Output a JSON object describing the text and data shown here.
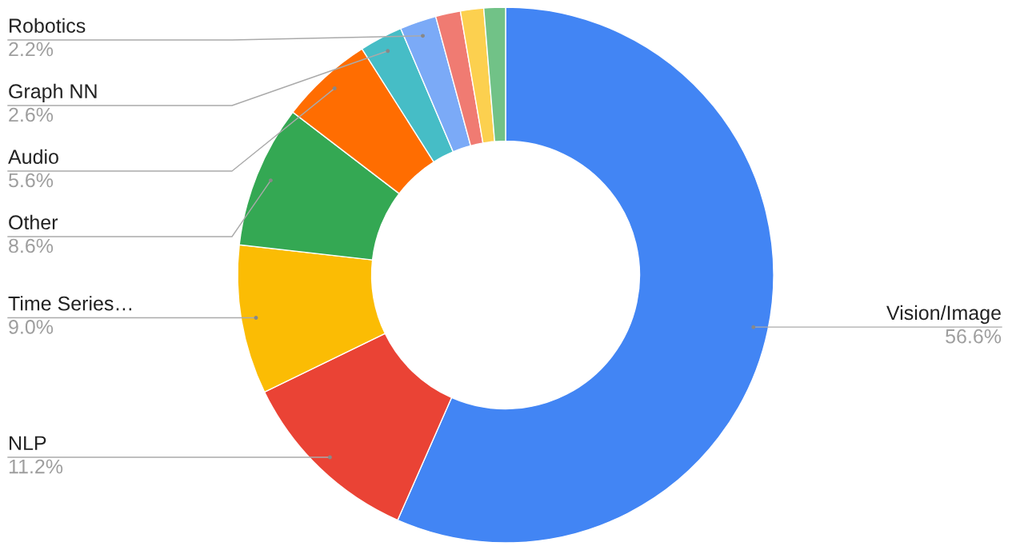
{
  "chart_data": {
    "type": "donut",
    "categories": [
      "Vision/Image",
      "NLP",
      "Time Series…",
      "Other",
      "Audio",
      "Graph NN",
      "Robotics",
      null,
      null,
      null
    ],
    "values": [
      56.6,
      11.2,
      9.0,
      8.6,
      5.6,
      2.6,
      2.2,
      1.5,
      1.4,
      1.3
    ],
    "value_labels": [
      "56.6%",
      "11.2%",
      "9.0%",
      "8.6%",
      "5.6%",
      "2.6%",
      "2.2%",
      null,
      null,
      null
    ],
    "colors": [
      "#4285f4",
      "#ea4335",
      "#fbbc04",
      "#34a853",
      "#ff6d01",
      "#46bdc6",
      "#7baaf7",
      "#f07b72",
      "#fcd04f",
      "#71c287"
    ],
    "legend": false
  }
}
